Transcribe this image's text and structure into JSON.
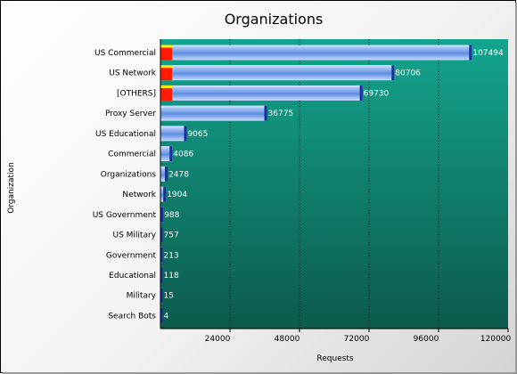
{
  "chart_data": {
    "type": "bar",
    "orientation": "horizontal",
    "title": "Organizations",
    "xlabel": "Requests",
    "ylabel": "Organization",
    "categories": [
      "US Commercial",
      "US Network",
      "[OTHERS]",
      "Proxy Server",
      "US Educational",
      "Commercial",
      "Organizations",
      "Network",
      "US Government",
      "US Military",
      "Government",
      "Educational",
      "Military",
      "Search Bots"
    ],
    "values": [
      107494,
      80706,
      69730,
      36775,
      9065,
      4086,
      2478,
      1904,
      988,
      757,
      213,
      118,
      15,
      4
    ],
    "xlim": [
      0,
      120000
    ],
    "xticks": [
      24000,
      48000,
      72000,
      96000,
      120000
    ],
    "grid": "vertical dotted",
    "legend": "none",
    "colors": {
      "plot_top": "#13a58e",
      "plot_bottom": "#0c5a4c",
      "bar_light": "#c8dcff",
      "bar_dark": "#5f8ee0",
      "bar_cap": "#1a2f9a",
      "marker": "#ff1a00",
      "marker_edge": "#ffee00",
      "value_text": "#ffffff",
      "label_text": "#000000"
    }
  }
}
